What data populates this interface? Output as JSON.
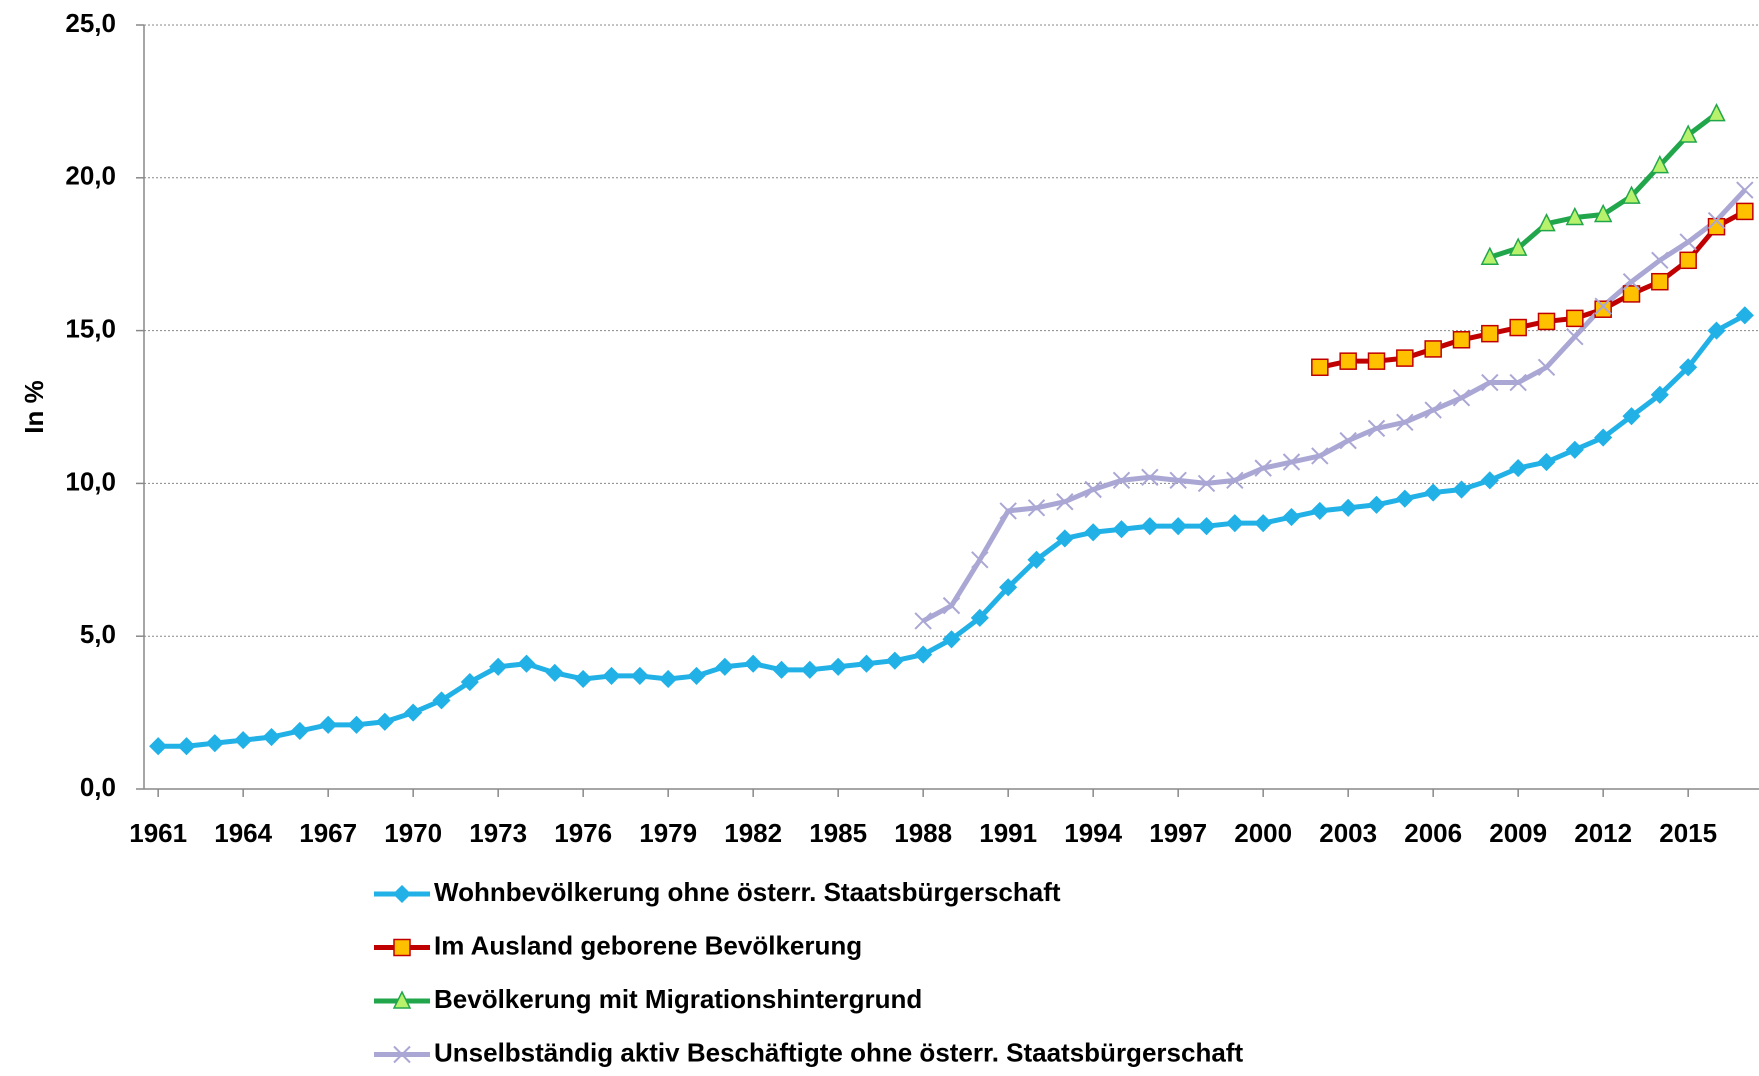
{
  "chart_data": {
    "type": "line",
    "y_label": "In %",
    "x": [
      1961,
      1962,
      1963,
      1964,
      1965,
      1966,
      1967,
      1968,
      1969,
      1970,
      1971,
      1972,
      1973,
      1974,
      1975,
      1976,
      1977,
      1978,
      1979,
      1980,
      1981,
      1982,
      1983,
      1984,
      1985,
      1986,
      1987,
      1988,
      1989,
      1990,
      1991,
      1992,
      1993,
      1994,
      1995,
      1996,
      1997,
      1998,
      1999,
      2000,
      2001,
      2002,
      2003,
      2004,
      2005,
      2006,
      2007,
      2008,
      2009,
      2010,
      2011,
      2012,
      2013,
      2014,
      2015,
      2016,
      2017
    ],
    "xlim": [
      1960.5,
      2017.5
    ],
    "xticks": [
      1961,
      1964,
      1967,
      1970,
      1973,
      1976,
      1979,
      1982,
      1985,
      1988,
      1991,
      1994,
      1997,
      2000,
      2003,
      2006,
      2009,
      2012,
      2015
    ],
    "ylim": [
      0,
      25
    ],
    "yticks": [
      {
        "value": 0,
        "label": "0,0"
      },
      {
        "value": 5,
        "label": "5,0"
      },
      {
        "value": 10,
        "label": "10,0"
      },
      {
        "value": 15,
        "label": "15,0"
      },
      {
        "value": 20,
        "label": "20,0"
      },
      {
        "value": 25,
        "label": "25,0"
      }
    ],
    "grid": true,
    "legend": "bottom",
    "series": [
      {
        "name": "Wohnbevölkerung ohne österr. Staatsbürgerschaft",
        "color": "#21b1e6",
        "marker": "diamond",
        "marker_fill": "#21b1e6",
        "values": [
          1.4,
          1.4,
          1.5,
          1.6,
          1.7,
          1.9,
          2.1,
          2.1,
          2.2,
          2.5,
          2.9,
          3.5,
          4.0,
          4.1,
          3.8,
          3.6,
          3.7,
          3.7,
          3.6,
          3.7,
          4.0,
          4.1,
          3.9,
          3.9,
          4.0,
          4.1,
          4.2,
          4.4,
          4.9,
          5.6,
          6.6,
          7.5,
          8.2,
          8.4,
          8.5,
          8.6,
          8.6,
          8.6,
          8.7,
          8.7,
          8.9,
          9.1,
          9.2,
          9.3,
          9.5,
          9.7,
          9.8,
          10.1,
          10.5,
          10.7,
          11.1,
          11.5,
          12.2,
          12.9,
          13.8,
          15.0,
          15.5
        ]
      },
      {
        "name": "Im Ausland geborene Bevölkerung",
        "color": "#c00000",
        "marker": "square",
        "marker_fill": "#ffc000",
        "values": [
          null,
          null,
          null,
          null,
          null,
          null,
          null,
          null,
          null,
          null,
          null,
          null,
          null,
          null,
          null,
          null,
          null,
          null,
          null,
          null,
          null,
          null,
          null,
          null,
          null,
          null,
          null,
          null,
          null,
          null,
          null,
          null,
          null,
          null,
          null,
          null,
          null,
          null,
          null,
          null,
          null,
          13.8,
          14.0,
          14.0,
          14.1,
          14.4,
          14.7,
          14.9,
          15.1,
          15.3,
          15.4,
          15.7,
          16.2,
          16.6,
          17.3,
          18.4,
          18.9
        ]
      },
      {
        "name": "Bevölkerung mit Migrationshintergrund",
        "color": "#22a64b",
        "marker": "triangle",
        "marker_fill": "#b8f26c",
        "values": [
          null,
          null,
          null,
          null,
          null,
          null,
          null,
          null,
          null,
          null,
          null,
          null,
          null,
          null,
          null,
          null,
          null,
          null,
          null,
          null,
          null,
          null,
          null,
          null,
          null,
          null,
          null,
          null,
          null,
          null,
          null,
          null,
          null,
          null,
          null,
          null,
          null,
          null,
          null,
          null,
          null,
          null,
          null,
          null,
          null,
          null,
          null,
          17.4,
          17.7,
          18.5,
          18.7,
          18.8,
          19.4,
          20.4,
          21.4,
          22.1,
          null
        ]
      },
      {
        "name": "Unselbständig aktiv Beschäftigte ohne österr. Staatsbürgerschaft",
        "color": "#aaa7d4",
        "marker": "cross",
        "marker_fill": "#aaa7d4",
        "values": [
          null,
          null,
          null,
          null,
          null,
          null,
          null,
          null,
          null,
          null,
          null,
          null,
          null,
          null,
          null,
          null,
          null,
          null,
          null,
          null,
          null,
          null,
          null,
          null,
          null,
          null,
          null,
          5.5,
          6.0,
          7.5,
          9.1,
          9.2,
          9.4,
          9.8,
          10.1,
          10.2,
          10.1,
          10.0,
          10.1,
          10.5,
          10.7,
          10.9,
          11.4,
          11.8,
          12.0,
          12.4,
          12.8,
          13.3,
          13.3,
          13.8,
          14.8,
          15.8,
          16.6,
          17.3,
          17.9,
          18.6,
          19.6
        ]
      }
    ]
  }
}
